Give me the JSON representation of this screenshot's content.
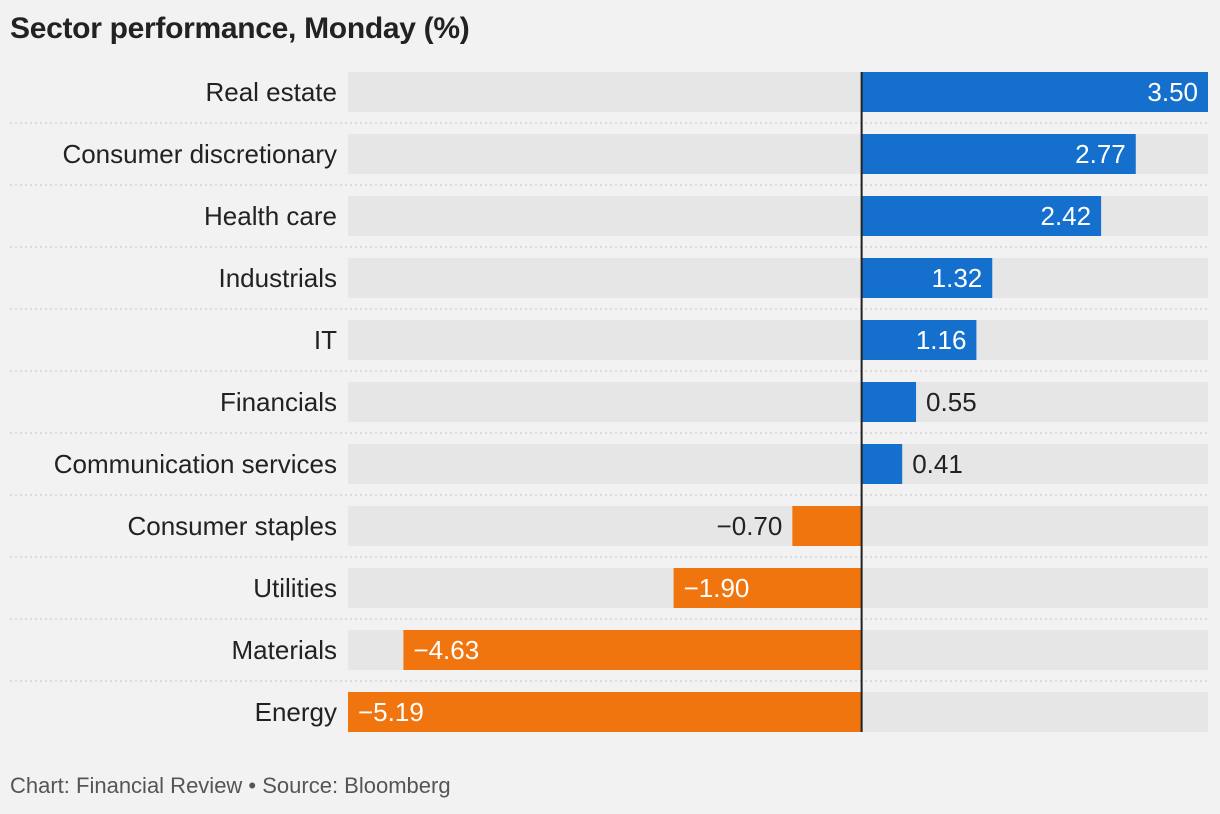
{
  "chart_data": {
    "type": "bar",
    "orientation": "horizontal",
    "title": "Sector performance, Monday (%)",
    "source": "Chart: Financial Review • Source: Bloomberg",
    "categories": [
      "Real estate",
      "Consumer discretionary",
      "Health care",
      "Industrials",
      "IT",
      "Financials",
      "Communication services",
      "Consumer staples",
      "Utilities",
      "Materials",
      "Energy"
    ],
    "values": [
      3.5,
      2.77,
      2.42,
      1.32,
      1.16,
      0.55,
      0.41,
      -0.7,
      -1.9,
      -4.63,
      -5.19
    ],
    "value_labels": [
      "3.50",
      "2.77",
      "2.42",
      "1.32",
      "1.16",
      "0.55",
      "0.41",
      "−0.70",
      "−1.90",
      "−4.63",
      "−5.19"
    ],
    "xlim": [
      -5.19,
      3.5
    ],
    "colors": {
      "positive": "#1470cc",
      "negative": "#f0750f",
      "track": "#e6e6e6",
      "zero_line": "#222222"
    },
    "grid": false,
    "legend": "none"
  }
}
